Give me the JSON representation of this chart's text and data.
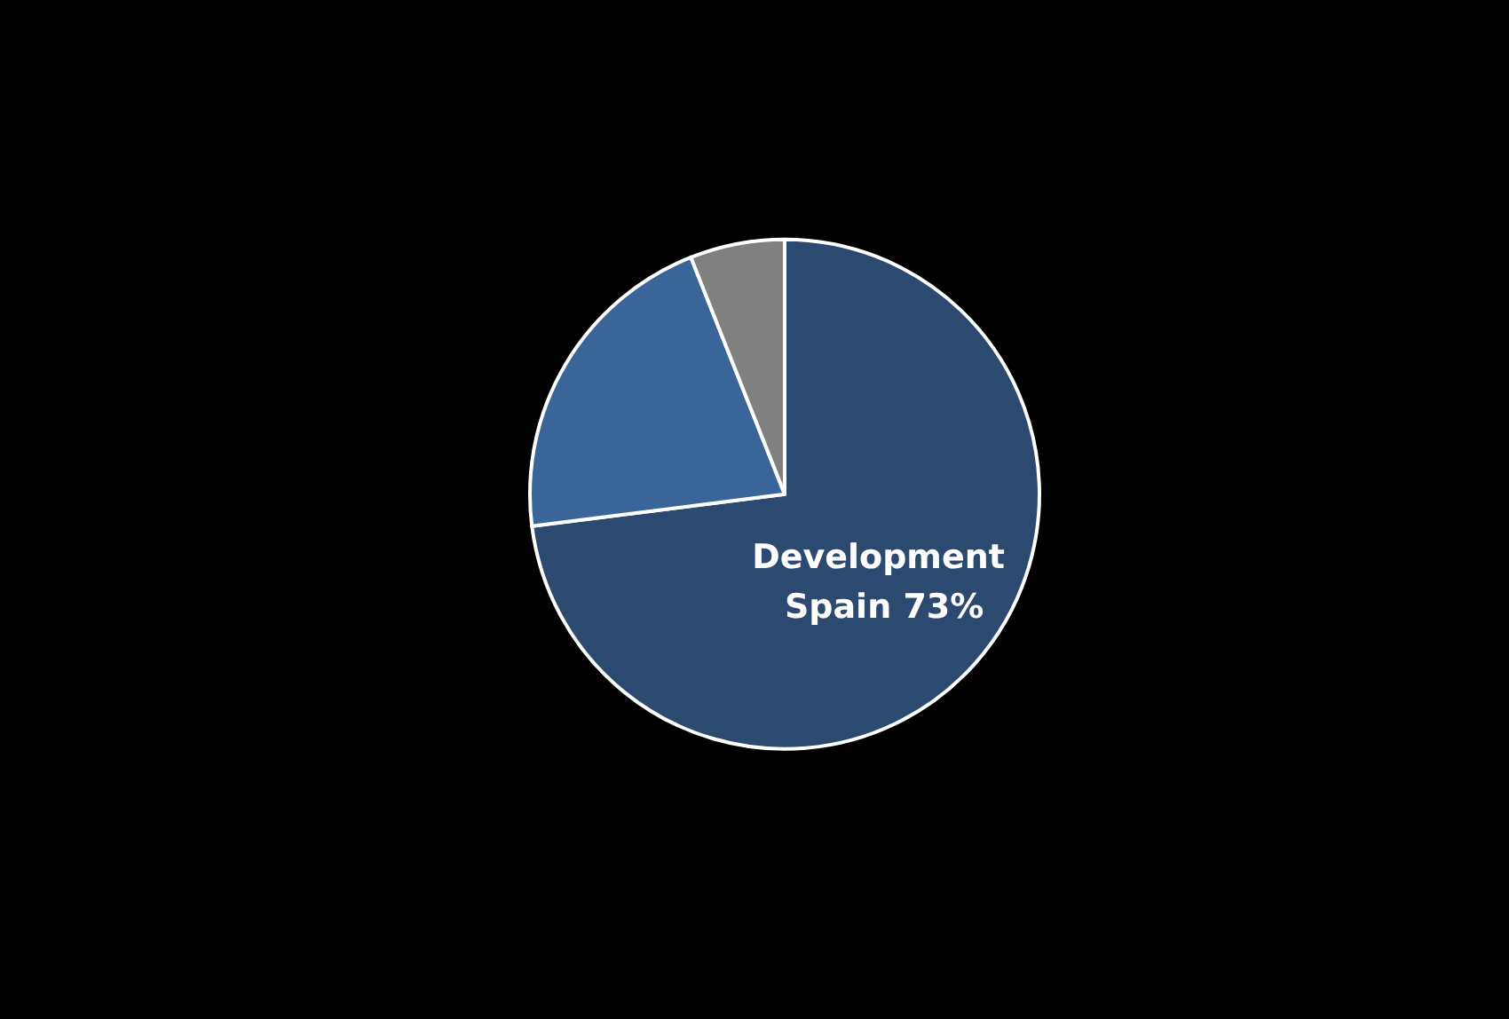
{
  "chart_data": {
    "type": "pie",
    "categories": [
      "Development Spain",
      null,
      null
    ],
    "values": [
      73,
      21,
      6
    ],
    "value_labels": [
      "73%",
      null,
      null
    ],
    "colors": [
      "#2c4a70",
      "#3a6598",
      "#808080"
    ]
  }
}
